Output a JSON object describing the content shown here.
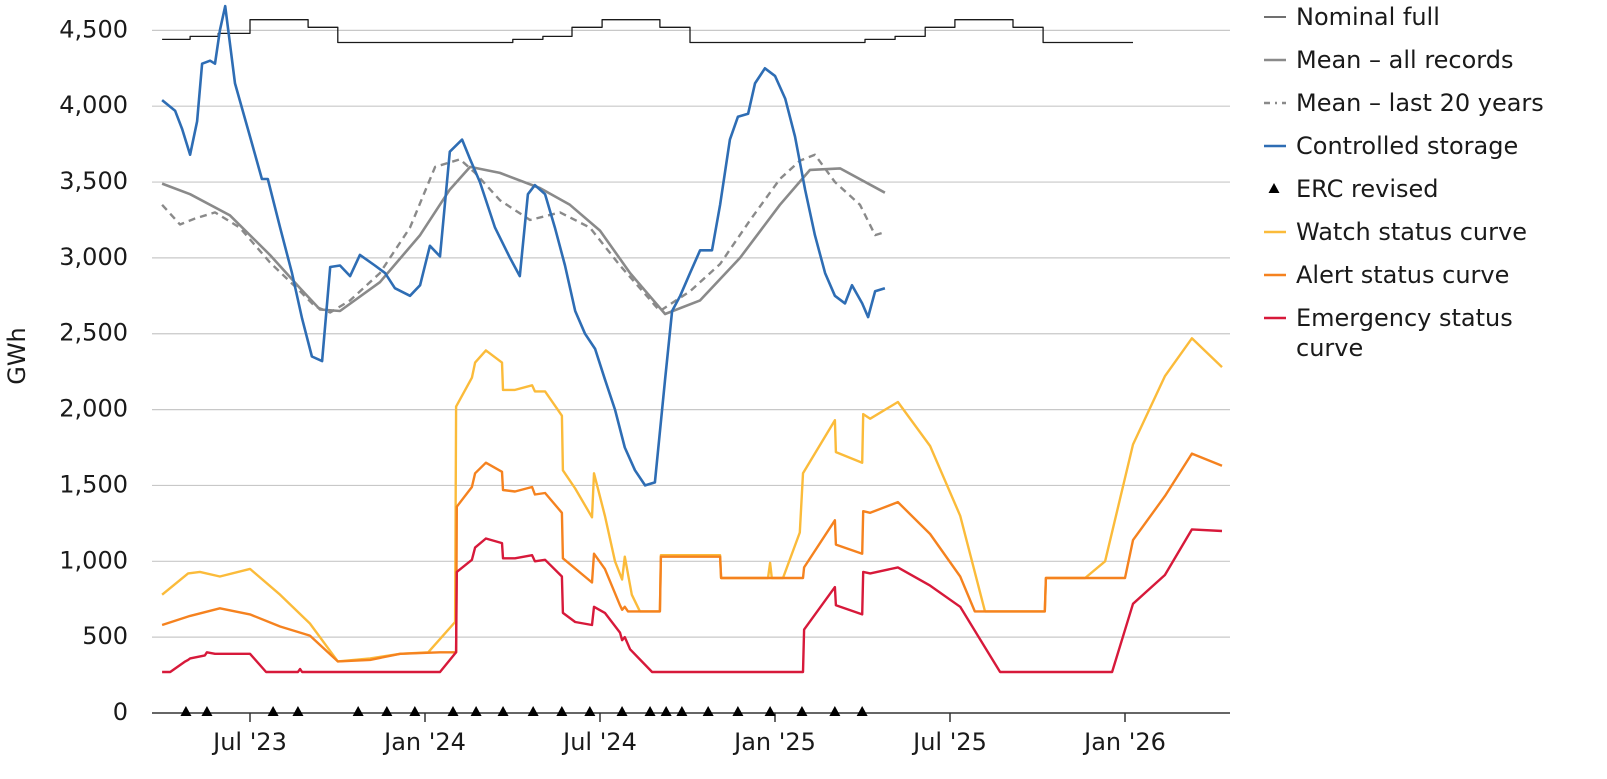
{
  "chart_data": {
    "type": "line",
    "y_label": "GWh",
    "xlim": [
      2023.22,
      2026.3
    ],
    "xticks": [
      {
        "value": 2023.5,
        "label": "Jul '23"
      },
      {
        "value": 2024.0,
        "label": "Jan '24"
      },
      {
        "value": 2024.5,
        "label": "Jul '24"
      },
      {
        "value": 2025.0,
        "label": "Jan '25"
      },
      {
        "value": 2025.5,
        "label": "Jul '25"
      },
      {
        "value": 2026.0,
        "label": "Jan '26"
      }
    ],
    "ylim": [
      0,
      4700
    ],
    "yticks": [
      0,
      500,
      {
        "value": 1000,
        "label": "1,000"
      },
      {
        "value": 1500,
        "label": "1,500"
      },
      {
        "value": 2000,
        "label": "2,000"
      },
      {
        "value": 2500,
        "label": "2,500"
      },
      {
        "value": 3000,
        "label": "3,000"
      },
      {
        "value": 3500,
        "label": "3,500"
      },
      {
        "value": 4000,
        "label": "4,000"
      },
      {
        "value": 4500,
        "label": "4,500"
      }
    ],
    "grid": true,
    "legend": "right",
    "series": [
      {
        "name": "Nominal full",
        "color": "#1a1a1a",
        "width": 1.3,
        "x": [
          2023.249,
          2023.329,
          2023.329,
          2023.409,
          2023.409,
          2023.5,
          2023.5,
          2023.666,
          2023.666,
          2023.751,
          2023.751,
          2024.251,
          2024.251,
          2024.337,
          2024.337,
          2024.42,
          2024.42,
          2024.506,
          2024.506,
          2024.671,
          2024.671,
          2024.757,
          2024.757,
          2025.257,
          2025.257,
          2025.343,
          2025.343,
          2025.429,
          2025.429,
          2025.514,
          2025.514,
          2025.68,
          2025.68,
          2025.766,
          2025.766,
          2026.023
        ],
        "values": [
          4440,
          4440,
          4460,
          4460,
          4480,
          4480,
          4570,
          4570,
          4520,
          4520,
          4420,
          4420,
          4440,
          4440,
          4460,
          4460,
          4520,
          4520,
          4570,
          4570,
          4520,
          4520,
          4420,
          4420,
          4440,
          4440,
          4460,
          4460,
          4520,
          4520,
          4570,
          4570,
          4520,
          4520,
          4420,
          4420
        ]
      },
      {
        "name": "Mean – all records",
        "color": "#8a8a8a",
        "width": 2.6,
        "x": [
          2023.249,
          2023.329,
          2023.443,
          2023.557,
          2023.643,
          2023.7,
          2023.757,
          2023.871,
          2023.986,
          2024.071,
          2024.129,
          2024.214,
          2024.329,
          2024.414,
          2024.5,
          2024.586,
          2024.686,
          2024.786,
          2024.9,
          2025.014,
          2025.1,
          2025.186,
          2025.314
        ],
        "values": [
          3490,
          3420,
          3280,
          3020,
          2800,
          2660,
          2650,
          2840,
          3150,
          3450,
          3600,
          3560,
          3460,
          3350,
          3180,
          2900,
          2630,
          2720,
          3000,
          3350,
          3580,
          3590,
          3430
        ]
      },
      {
        "name": "Mean – last 20 years",
        "color": "#8a8a8a",
        "width": 2.4,
        "dashed": true,
        "x": [
          2023.249,
          2023.3,
          2023.343,
          2023.4,
          2023.471,
          2023.557,
          2023.643,
          2023.686,
          2023.729,
          2023.786,
          2023.871,
          2023.957,
          2024.029,
          2024.1,
          2024.143,
          2024.214,
          2024.3,
          2024.386,
          2024.471,
          2024.557,
          2024.671,
          2024.757,
          2024.843,
          2024.929,
          2025.014,
          2025.071,
          2025.114,
          2025.171,
          2025.243,
          2025.286,
          2025.314
        ],
        "values": [
          3350,
          3220,
          3260,
          3300,
          3200,
          2970,
          2780,
          2680,
          2640,
          2720,
          2900,
          3200,
          3600,
          3650,
          3560,
          3380,
          3250,
          3300,
          3200,
          2950,
          2650,
          2780,
          2960,
          3250,
          3520,
          3640,
          3680,
          3500,
          3350,
          3150,
          3170
        ]
      },
      {
        "name": "Controlled storage",
        "color": "#2e6db4",
        "width": 2.6,
        "x": [
          2023.249,
          2023.286,
          2023.306,
          2023.329,
          2023.349,
          2023.363,
          2023.386,
          2023.4,
          2023.414,
          2023.429,
          2023.457,
          2023.5,
          2023.534,
          2023.551,
          2023.586,
          2023.62,
          2023.649,
          2023.677,
          2023.706,
          2023.729,
          2023.757,
          2023.786,
          2023.814,
          2023.857,
          2023.886,
          2023.914,
          2023.957,
          2023.986,
          2024.014,
          2024.043,
          2024.071,
          2024.106,
          2024.129,
          2024.157,
          2024.2,
          2024.243,
          2024.271,
          2024.294,
          2024.314,
          2024.343,
          2024.371,
          2024.4,
          2024.429,
          2024.457,
          2024.486,
          2024.514,
          2024.543,
          2024.571,
          2024.6,
          2024.629,
          2024.657,
          2024.686,
          2024.706,
          2024.729,
          2024.757,
          2024.786,
          2024.82,
          2024.843,
          2024.871,
          2024.894,
          2024.923,
          2024.943,
          2024.971,
          2025.0,
          2025.029,
          2025.057,
          2025.086,
          2025.114,
          2025.143,
          2025.171,
          2025.2,
          2025.22,
          2025.249,
          2025.266,
          2025.286,
          2025.314
        ],
        "values": [
          4040,
          3970,
          3850,
          3680,
          3900,
          4280,
          4300,
          4280,
          4500,
          4660,
          4150,
          3800,
          3520,
          3520,
          3200,
          2900,
          2600,
          2350,
          2320,
          2940,
          2950,
          2880,
          3020,
          2950,
          2900,
          2800,
          2750,
          2820,
          3080,
          3010,
          3700,
          3780,
          3650,
          3500,
          3200,
          3000,
          2880,
          3420,
          3480,
          3420,
          3200,
          2950,
          2650,
          2500,
          2400,
          2200,
          2000,
          1750,
          1600,
          1500,
          1520,
          2200,
          2650,
          2750,
          2900,
          3050,
          3050,
          3350,
          3780,
          3930,
          3950,
          4150,
          4250,
          4200,
          4050,
          3800,
          3450,
          3150,
          2900,
          2750,
          2700,
          2820,
          2700,
          2610,
          2780,
          2800
        ]
      },
      {
        "name": "ERC revised",
        "color": "#000000",
        "type": "scatter",
        "marker": "triangle",
        "x": [
          2023.317,
          2023.377,
          2023.566,
          2023.637,
          2023.809,
          2023.891,
          2023.971,
          2024.08,
          2024.146,
          2024.223,
          2024.309,
          2024.391,
          2024.471,
          2024.563,
          2024.643,
          2024.689,
          2024.734,
          2024.809,
          2024.894,
          2024.986,
          2025.077,
          2025.171,
          2025.249
        ],
        "values": [
          0,
          0,
          0,
          0,
          0,
          0,
          0,
          0,
          0,
          0,
          0,
          0,
          0,
          0,
          0,
          0,
          0,
          0,
          0,
          0,
          0,
          0,
          0
        ]
      },
      {
        "name": "Watch status curve",
        "color": "#fbbb3a",
        "width": 2.4,
        "x": [
          2023.249,
          2023.323,
          2023.357,
          2023.414,
          2023.5,
          2023.586,
          2023.671,
          2023.751,
          2023.843,
          2023.929,
          2024.009,
          2024.086,
          2024.089,
          2024.134,
          2024.143,
          2024.174,
          2024.22,
          2024.223,
          2024.257,
          2024.306,
          2024.314,
          2024.343,
          2024.391,
          2024.394,
          2024.429,
          2024.477,
          2024.483,
          2024.514,
          2024.543,
          2024.563,
          2024.571,
          2024.591,
          2024.614,
          2024.671,
          2024.674,
          2024.843,
          2024.846,
          2024.98,
          2024.986,
          2024.991,
          2025.023,
          2025.071,
          2025.08,
          2025.171,
          2025.174,
          2025.249,
          2025.252,
          2025.272,
          2025.351,
          2025.443,
          2025.529,
          2025.6,
          2025.771,
          2025.774,
          2025.886,
          2025.943,
          2026.023,
          2026.114,
          2026.191,
          2026.277
        ],
        "values": [
          780,
          920,
          930,
          900,
          950,
          780,
          590,
          340,
          360,
          390,
          400,
          600,
          2020,
          2210,
          2310,
          2390,
          2310,
          2130,
          2130,
          2160,
          2120,
          2120,
          1960,
          1600,
          1480,
          1290,
          1580,
          1300,
          1000,
          880,
          1030,
          780,
          670,
          670,
          1040,
          1040,
          890,
          890,
          990,
          890,
          890,
          1190,
          1580,
          1930,
          1720,
          1650,
          1970,
          1940,
          2050,
          1760,
          1300,
          670,
          670,
          890,
          890,
          1000,
          1770,
          2220,
          2470,
          2280
        ]
      },
      {
        "name": "Alert status curve",
        "color": "#f5821f",
        "width": 2.4,
        "x": [
          2023.249,
          2023.329,
          2023.414,
          2023.5,
          2023.586,
          2023.671,
          2023.751,
          2023.843,
          2023.929,
          2024.043,
          2024.089,
          2024.091,
          2024.134,
          2024.143,
          2024.174,
          2024.22,
          2024.223,
          2024.257,
          2024.306,
          2024.314,
          2024.343,
          2024.391,
          2024.394,
          2024.477,
          2024.483,
          2024.514,
          2024.557,
          2024.563,
          2024.571,
          2024.58,
          2024.671,
          2024.674,
          2024.843,
          2024.846,
          2025.08,
          2025.083,
          2025.171,
          2025.174,
          2025.249,
          2025.252,
          2025.272,
          2025.351,
          2025.443,
          2025.529,
          2025.571,
          2025.771,
          2025.774,
          2026.0,
          2026.023,
          2026.114,
          2026.191,
          2026.277
        ],
        "values": [
          580,
          640,
          690,
          650,
          570,
          510,
          340,
          350,
          390,
          400,
          400,
          1360,
          1490,
          1580,
          1650,
          1590,
          1470,
          1460,
          1490,
          1440,
          1450,
          1320,
          1020,
          860,
          1050,
          950,
          710,
          680,
          700,
          670,
          670,
          1030,
          1030,
          890,
          890,
          960,
          1270,
          1110,
          1050,
          1330,
          1320,
          1390,
          1180,
          900,
          670,
          670,
          890,
          890,
          1140,
          1430,
          1710,
          1630
        ]
      },
      {
        "name": "Emergency status curve",
        "color": "#d7193a",
        "width": 2.4,
        "x": [
          2023.249,
          2023.272,
          2023.315,
          2023.323,
          2023.329,
          2023.371,
          2023.377,
          2023.4,
          2023.5,
          2023.546,
          2023.637,
          2023.643,
          2023.649,
          2024.043,
          2024.089,
          2024.091,
          2024.134,
          2024.143,
          2024.174,
          2024.22,
          2024.223,
          2024.257,
          2024.306,
          2024.314,
          2024.343,
          2024.391,
          2024.394,
          2024.429,
          2024.477,
          2024.483,
          2024.514,
          2024.557,
          2024.563,
          2024.571,
          2024.586,
          2024.649,
          2025.08,
          2025.083,
          2025.171,
          2025.174,
          2025.249,
          2025.252,
          2025.272,
          2025.351,
          2025.443,
          2025.529,
          2025.614,
          2025.643,
          2025.963,
          2026.023,
          2026.114,
          2026.191,
          2026.277
        ],
        "values": [
          270,
          270,
          340,
          350,
          360,
          380,
          400,
          390,
          390,
          270,
          270,
          290,
          270,
          270,
          400,
          930,
          1010,
          1090,
          1150,
          1120,
          1020,
          1020,
          1040,
          1000,
          1010,
          900,
          660,
          600,
          580,
          700,
          660,
          530,
          480,
          500,
          420,
          270,
          270,
          550,
          830,
          710,
          650,
          930,
          920,
          960,
          840,
          700,
          380,
          270,
          270,
          720,
          910,
          1210,
          1200
        ]
      }
    ]
  }
}
